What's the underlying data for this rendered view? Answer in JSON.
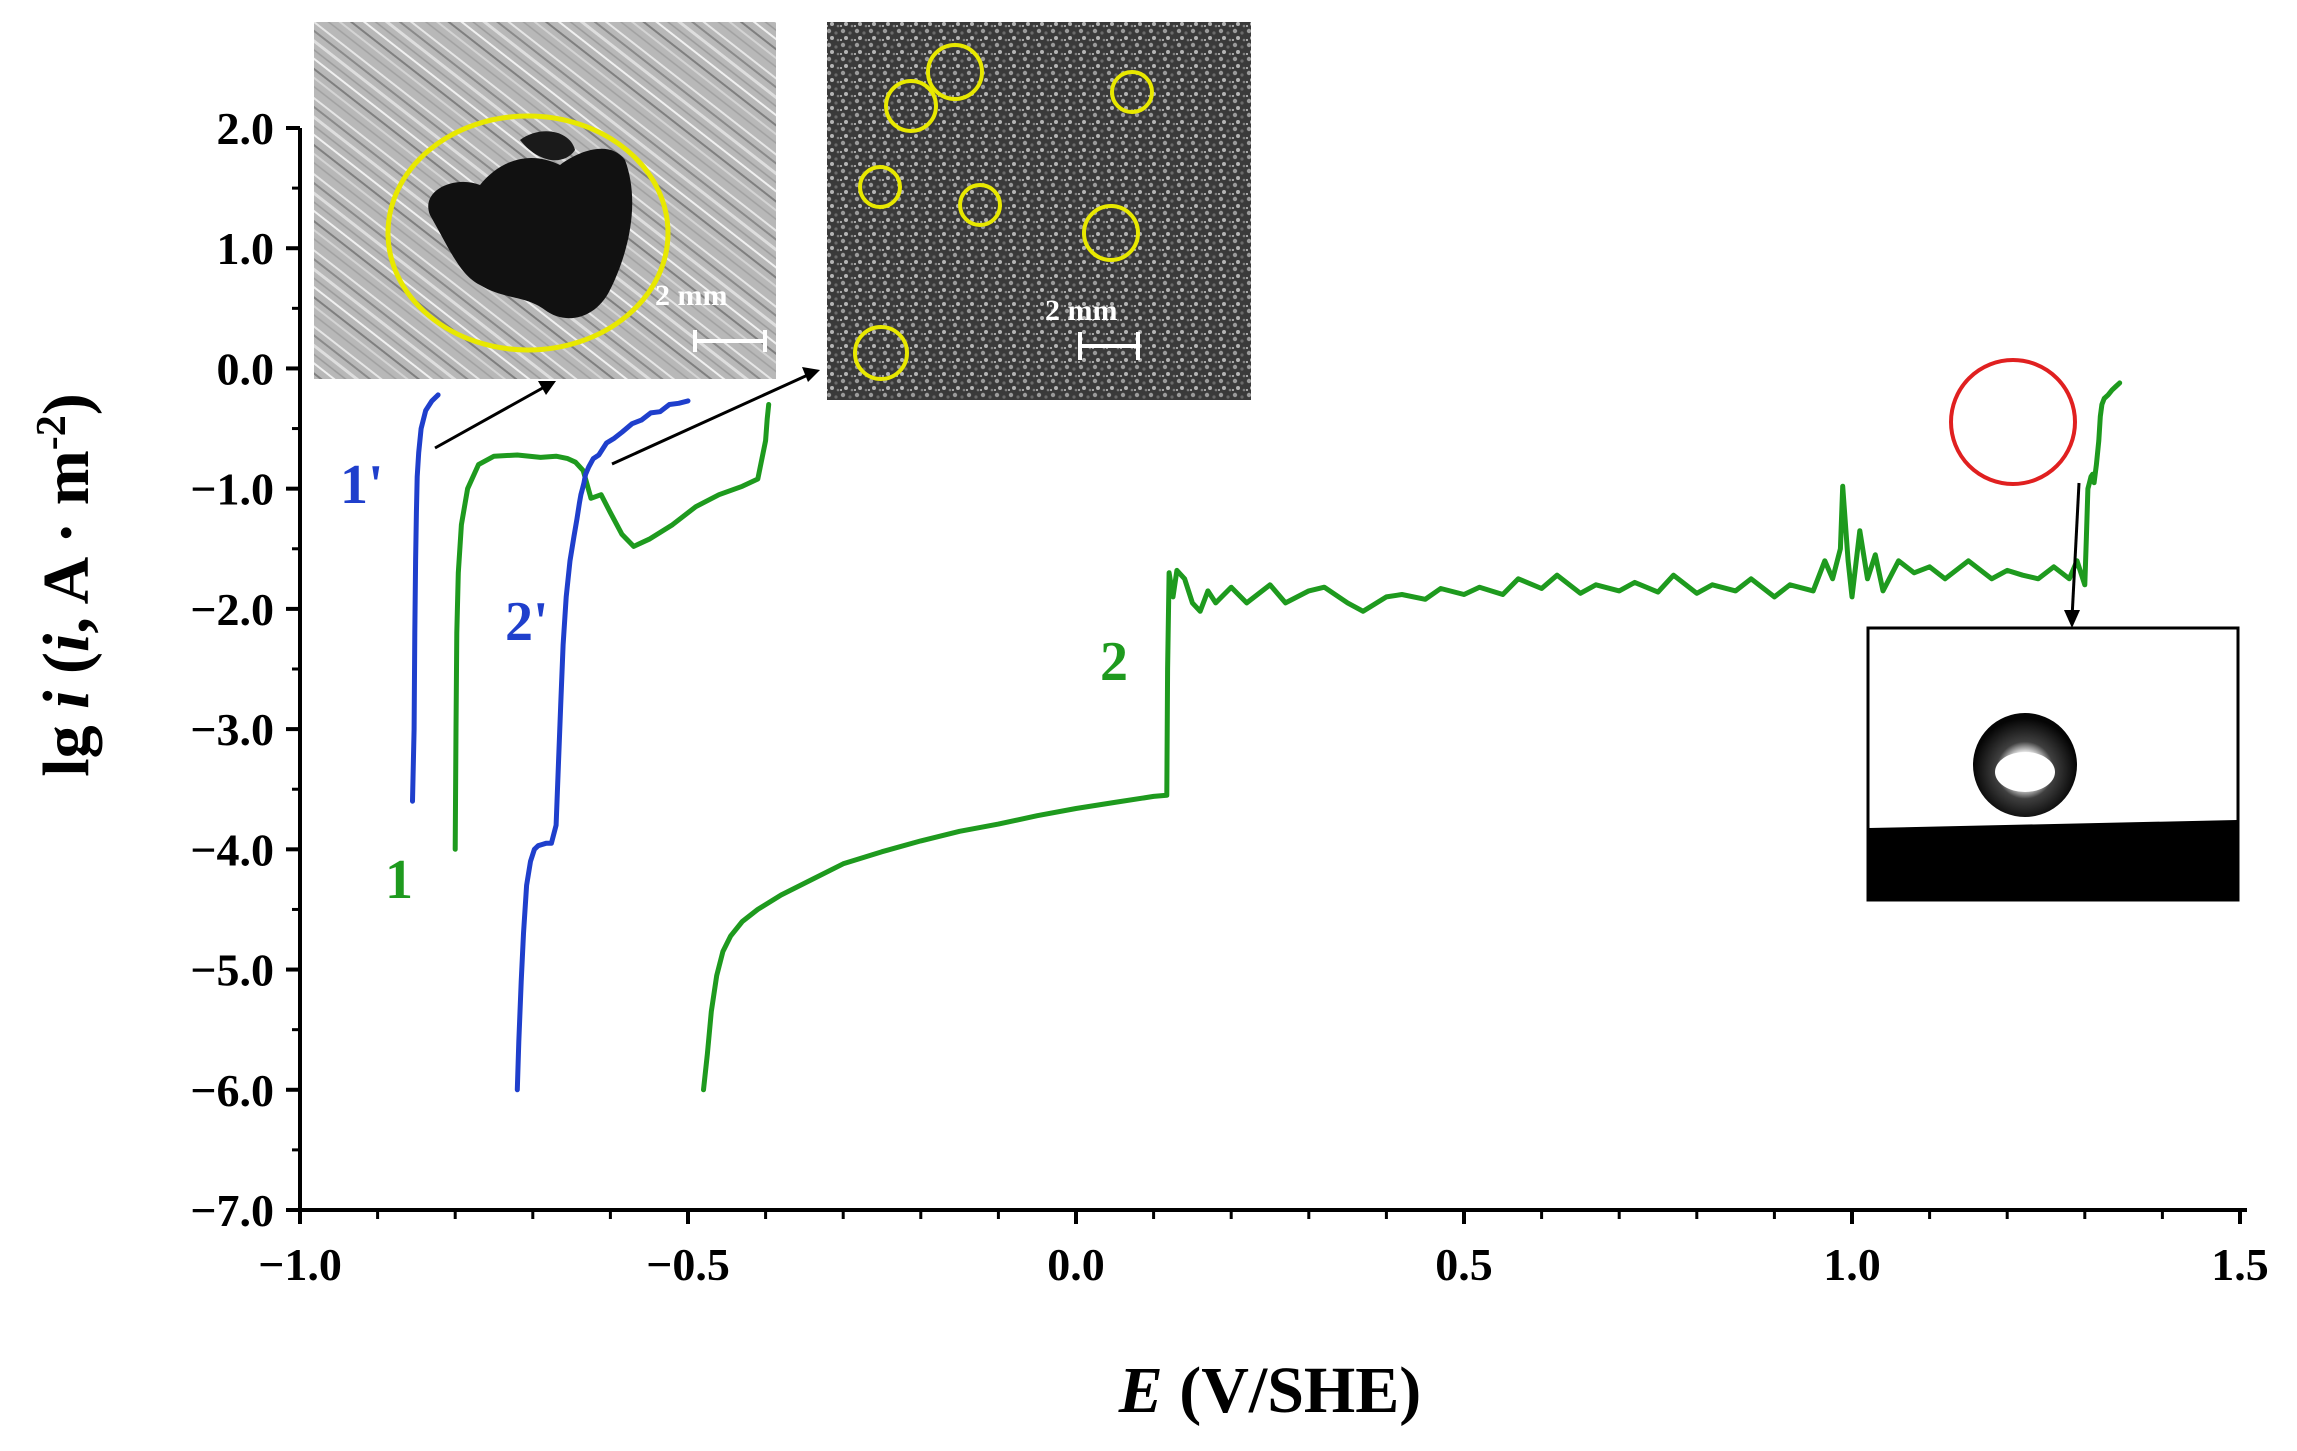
{
  "chart_data": {
    "type": "line",
    "xlabel": {
      "italic": "E",
      "rest": " (V/SHE)"
    },
    "ylabel": {
      "prefix": "lg ",
      "italic": "i",
      "mid": " (",
      "italic2": "i",
      "rest": ", A · m",
      "sup": "-2",
      "close": ")"
    },
    "xlim": [
      -1.0,
      1.5
    ],
    "ylim": [
      -7.0,
      2.0
    ],
    "x_ticks": [
      -1.0,
      -0.5,
      0.0,
      0.5,
      1.0,
      1.5
    ],
    "x_tick_labels": [
      "−1.0",
      "−0.5",
      "0.0",
      "0.5",
      "1.0",
      "1.5"
    ],
    "y_ticks": [
      2.0,
      1.0,
      0.0,
      -1.0,
      -2.0,
      -3.0,
      -4.0,
      -5.0,
      -6.0,
      -7.0
    ],
    "y_tick_labels": [
      "2.0",
      "1.0",
      "0.0",
      "−1.0",
      "−2.0",
      "−3.0",
      "−4.0",
      "−5.0",
      "−6.0",
      "−7.0"
    ],
    "colors": {
      "blue": "#1f3fcc",
      "green": "#1e9a1e",
      "yellow": "#e8e800",
      "red": "#e02020"
    },
    "series": [
      {
        "name": "1'",
        "color": "blue",
        "x": [
          -0.855,
          -0.853,
          -0.852,
          -0.851,
          -0.85,
          -0.849,
          -0.847,
          -0.844,
          -0.838,
          -0.83,
          -0.822
        ],
        "y": [
          -3.6,
          -3.0,
          -2.2,
          -1.6,
          -1.2,
          -0.9,
          -0.7,
          -0.5,
          -0.35,
          -0.27,
          -0.22
        ]
      },
      {
        "name": "1",
        "color": "green",
        "x": [
          -0.8,
          -0.799,
          -0.798,
          -0.796,
          -0.792,
          -0.784,
          -0.77,
          -0.75,
          -0.72,
          -0.69,
          -0.67,
          -0.655,
          -0.645,
          -0.635,
          -0.625,
          -0.612,
          -0.6,
          -0.585,
          -0.57,
          -0.55,
          -0.52,
          -0.49,
          -0.46,
          -0.43,
          -0.41,
          -0.4,
          -0.398,
          -0.396
        ],
        "y": [
          -4.0,
          -3.0,
          -2.2,
          -1.7,
          -1.3,
          -1.0,
          -0.8,
          -0.73,
          -0.72,
          -0.74,
          -0.73,
          -0.75,
          -0.78,
          -0.85,
          -1.08,
          -1.05,
          -1.2,
          -1.38,
          -1.48,
          -1.42,
          -1.3,
          -1.15,
          -1.05,
          -0.98,
          -0.92,
          -0.6,
          -0.42,
          -0.3
        ]
      },
      {
        "name": "2'",
        "color": "blue",
        "x": [
          -0.72,
          -0.718,
          -0.715,
          -0.712,
          -0.708,
          -0.703,
          -0.698,
          -0.693,
          -0.688,
          -0.683,
          -0.676,
          -0.67,
          -0.667,
          -0.664,
          -0.661,
          -0.657,
          -0.652,
          -0.647,
          -0.643,
          -0.64,
          -0.638,
          -0.636,
          -0.634,
          -0.632,
          -0.628,
          -0.622,
          -0.615,
          -0.605,
          -0.595,
          -0.585,
          -0.572,
          -0.56,
          -0.548,
          -0.536,
          -0.524,
          -0.512,
          -0.5
        ],
        "y": [
          -6.0,
          -5.6,
          -5.1,
          -4.7,
          -4.3,
          -4.1,
          -4.0,
          -3.97,
          -3.96,
          -3.95,
          -3.95,
          -3.8,
          -3.3,
          -2.8,
          -2.3,
          -1.9,
          -1.6,
          -1.4,
          -1.25,
          -1.12,
          -1.05,
          -1.0,
          -0.95,
          -0.88,
          -0.82,
          -0.75,
          -0.72,
          -0.62,
          -0.58,
          -0.53,
          -0.46,
          -0.43,
          -0.37,
          -0.36,
          -0.3,
          -0.29,
          -0.27
        ]
      },
      {
        "name": "2",
        "color": "green",
        "x": [
          -0.48,
          -0.475,
          -0.47,
          -0.463,
          -0.455,
          -0.445,
          -0.43,
          -0.41,
          -0.38,
          -0.34,
          -0.3,
          -0.25,
          -0.2,
          -0.15,
          -0.1,
          -0.05,
          0.0,
          0.05,
          0.1,
          0.117,
          0.118,
          0.12,
          0.125,
          0.13,
          0.14,
          0.15,
          0.16,
          0.17,
          0.18,
          0.2,
          0.22,
          0.25,
          0.27,
          0.3,
          0.32,
          0.35,
          0.37,
          0.4,
          0.42,
          0.45,
          0.47,
          0.5,
          0.52,
          0.55,
          0.57,
          0.6,
          0.62,
          0.65,
          0.67,
          0.7,
          0.72,
          0.75,
          0.77,
          0.8,
          0.82,
          0.85,
          0.87,
          0.9,
          0.92,
          0.95,
          0.965,
          0.975,
          0.985,
          0.988,
          0.995,
          1.0,
          1.01,
          1.02,
          1.03,
          1.04,
          1.06,
          1.08,
          1.1,
          1.12,
          1.15,
          1.18,
          1.2,
          1.22,
          1.24,
          1.26,
          1.28,
          1.29,
          1.3,
          1.302,
          1.304,
          1.306,
          1.308,
          1.31,
          1.312,
          1.315,
          1.318,
          1.32,
          1.322,
          1.325,
          1.33,
          1.335,
          1.34,
          1.345
        ],
        "y": [
          -6.0,
          -5.7,
          -5.35,
          -5.05,
          -4.85,
          -4.72,
          -4.6,
          -4.5,
          -4.38,
          -4.25,
          -4.12,
          -4.02,
          -3.93,
          -3.85,
          -3.79,
          -3.72,
          -3.66,
          -3.61,
          -3.56,
          -3.55,
          -2.5,
          -1.7,
          -1.9,
          -1.68,
          -1.75,
          -1.95,
          -2.02,
          -1.85,
          -1.95,
          -1.82,
          -1.95,
          -1.8,
          -1.95,
          -1.85,
          -1.82,
          -1.95,
          -2.02,
          -1.9,
          -1.88,
          -1.92,
          -1.83,
          -1.88,
          -1.82,
          -1.88,
          -1.75,
          -1.83,
          -1.72,
          -1.87,
          -1.8,
          -1.85,
          -1.78,
          -1.86,
          -1.72,
          -1.87,
          -1.8,
          -1.85,
          -1.75,
          -1.9,
          -1.8,
          -1.85,
          -1.6,
          -1.75,
          -1.5,
          -0.98,
          -1.6,
          -1.9,
          -1.35,
          -1.75,
          -1.55,
          -1.85,
          -1.6,
          -1.7,
          -1.65,
          -1.75,
          -1.6,
          -1.75,
          -1.68,
          -1.72,
          -1.75,
          -1.65,
          -1.75,
          -1.6,
          -1.8,
          -1.4,
          -1.0,
          -0.95,
          -0.9,
          -0.88,
          -0.95,
          -0.8,
          -0.6,
          -0.4,
          -0.3,
          -0.25,
          -0.22,
          -0.18,
          -0.15,
          -0.12
        ]
      }
    ],
    "curve_labels": [
      {
        "text": "1'",
        "color": "blue"
      },
      {
        "text": "1",
        "color": "green"
      },
      {
        "text": "2'",
        "color": "blue"
      },
      {
        "text": "2",
        "color": "green"
      }
    ],
    "insets": [
      {
        "name": "optical-pit-inset",
        "scale_bar": "2 mm"
      },
      {
        "name": "sem-pits-inset",
        "scale_bar": "2 mm"
      },
      {
        "name": "contact-angle-inset"
      }
    ]
  }
}
